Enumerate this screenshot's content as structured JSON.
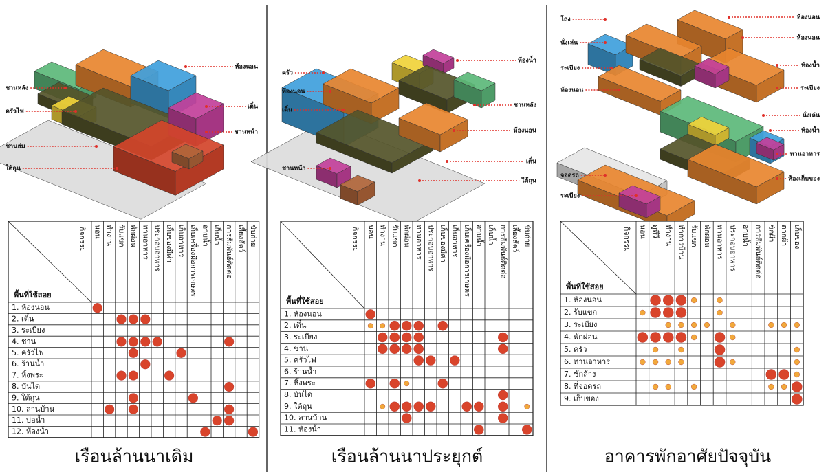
{
  "panels": [
    {
      "title": "เรือนล้านนาเดิม",
      "diagram": {
        "labels_left": [
          "ชานหลัง",
          "ครัวไฟ",
          "ชานฮ่ม",
          "ใต้ถุน"
        ],
        "labels_right": [
          "ห้องนอน",
          "เติ๋น",
          "ชานหน้า"
        ]
      },
      "table": {
        "corner_top": "กิจกรรม",
        "corner_bottom": "พื้นที่ใช้สอย",
        "columns": [
          "นอน",
          "ทำงาน",
          "รับแขก",
          "พักผ่อน",
          "ทานอาหาร",
          "ประกอบอาหาร",
          "เก็บของมีค่า",
          "เก็บอาหาร",
          "เก็บเครื่องมือการเกษตร",
          "อาบน้ำ",
          "เก็บน้ำ",
          "การสัมพันธ์ติดต่อ",
          "เลี้ยงสัตว์",
          "ขับถ่าย"
        ],
        "rows": [
          {
            "label": "1. ห้องนอน",
            "cells": [
              2,
              null,
              null,
              null,
              null,
              null,
              null,
              null,
              null,
              null,
              null,
              null,
              null,
              null
            ]
          },
          {
            "label": "2. เติ๋น",
            "cells": [
              null,
              null,
              2,
              2,
              2,
              null,
              null,
              null,
              null,
              null,
              null,
              null,
              null,
              null
            ]
          },
          {
            "label": "3. ระเบียง",
            "cells": [
              null,
              null,
              null,
              null,
              null,
              null,
              null,
              null,
              null,
              null,
              null,
              null,
              null,
              null
            ]
          },
          {
            "label": "4. ชาน",
            "cells": [
              null,
              null,
              2,
              2,
              2,
              2,
              null,
              null,
              null,
              null,
              null,
              2,
              null,
              null
            ]
          },
          {
            "label": "5. ครัวไฟ",
            "cells": [
              null,
              null,
              null,
              2,
              null,
              null,
              null,
              2,
              null,
              null,
              null,
              null,
              null,
              null
            ]
          },
          {
            "label": "6. ร้านน้ำ",
            "cells": [
              null,
              null,
              null,
              null,
              2,
              null,
              null,
              null,
              null,
              null,
              null,
              null,
              null,
              null
            ]
          },
          {
            "label": "7. หิ้งพระ",
            "cells": [
              null,
              null,
              2,
              2,
              null,
              null,
              2,
              null,
              null,
              null,
              null,
              null,
              null,
              null
            ]
          },
          {
            "label": "8. บันได",
            "cells": [
              null,
              null,
              null,
              null,
              null,
              null,
              null,
              null,
              null,
              null,
              null,
              2,
              null,
              null
            ]
          },
          {
            "label": "9. ใต้ถุน",
            "cells": [
              null,
              null,
              null,
              2,
              null,
              null,
              null,
              null,
              2,
              null,
              null,
              null,
              null,
              null
            ]
          },
          {
            "label": "10. ลานบ้าน",
            "cells": [
              null,
              2,
              null,
              2,
              null,
              null,
              null,
              null,
              null,
              null,
              null,
              2,
              null,
              null
            ]
          },
          {
            "label": "11. บ่อน้ำ",
            "cells": [
              null,
              null,
              null,
              null,
              null,
              null,
              null,
              null,
              null,
              null,
              2,
              2,
              null,
              null
            ]
          },
          {
            "label": "12. ห้องน้ำ",
            "cells": [
              null,
              null,
              null,
              null,
              null,
              null,
              null,
              null,
              null,
              2,
              null,
              null,
              null,
              2
            ]
          }
        ]
      }
    },
    {
      "title": "เรือนล้านนาประยุกต์",
      "diagram": {
        "labels_left": [
          "ครัว",
          "ห้องนอน",
          "เติ๋น",
          "ชานหน้า"
        ],
        "labels_right": [
          "ห้องน้ำ",
          "ชานหลัง",
          "ห้องนอน",
          "เติ๋น",
          "ใต้ถุน"
        ]
      },
      "table": {
        "corner_top": "กิจกรรม",
        "corner_bottom": "พื้นที่ใช้สอย",
        "columns": [
          "นอน",
          "ทำงาน",
          "รับแขก",
          "พักผ่อน",
          "ทานอาหาร",
          "ประกอบอาหาร",
          "เก็บของมีค่า",
          "เก็บอาหาร",
          "เก็บเครื่องมือการเกษตร",
          "อาบน้ำ",
          "เก็บน้ำ",
          "การสัมพันธ์ติดต่อ",
          "เลี้ยงสัตว์",
          "ขับถ่าย"
        ],
        "rows": [
          {
            "label": "1. ห้องนอน",
            "cells": [
              2,
              null,
              null,
              null,
              null,
              null,
              null,
              null,
              null,
              null,
              null,
              null,
              null,
              null
            ]
          },
          {
            "label": "2. เติ๋น",
            "cells": [
              1,
              1,
              2,
              2,
              2,
              null,
              2,
              null,
              null,
              null,
              null,
              null,
              null,
              null
            ]
          },
          {
            "label": "3. ระเบียง",
            "cells": [
              null,
              2,
              2,
              2,
              2,
              null,
              null,
              null,
              null,
              null,
              null,
              2,
              null,
              null
            ]
          },
          {
            "label": "4. ชาน",
            "cells": [
              null,
              2,
              2,
              2,
              2,
              null,
              null,
              null,
              null,
              null,
              null,
              2,
              null,
              null
            ]
          },
          {
            "label": "5. ครัวไฟ",
            "cells": [
              null,
              null,
              null,
              null,
              2,
              2,
              null,
              2,
              null,
              null,
              null,
              null,
              null,
              null
            ]
          },
          {
            "label": "6. ร้านน้ำ",
            "cells": [
              null,
              null,
              null,
              null,
              null,
              null,
              null,
              null,
              null,
              null,
              null,
              null,
              null,
              null
            ]
          },
          {
            "label": "7. หิ้งพระ",
            "cells": [
              2,
              null,
              2,
              1,
              null,
              null,
              2,
              null,
              null,
              null,
              null,
              null,
              null,
              null
            ]
          },
          {
            "label": "8. บันได",
            "cells": [
              null,
              null,
              null,
              null,
              null,
              null,
              null,
              null,
              null,
              null,
              null,
              2,
              null,
              null
            ]
          },
          {
            "label": "9. ใต้ถุน",
            "cells": [
              null,
              1,
              2,
              2,
              2,
              2,
              null,
              null,
              2,
              2,
              null,
              2,
              null,
              1
            ]
          },
          {
            "label": "10. ลานบ้าน",
            "cells": [
              null,
              null,
              null,
              2,
              null,
              null,
              null,
              null,
              null,
              null,
              null,
              2,
              null,
              null
            ]
          },
          {
            "label": "11. ห้องน้ำ",
            "cells": [
              null,
              null,
              null,
              null,
              null,
              null,
              null,
              null,
              null,
              2,
              null,
              null,
              null,
              2
            ]
          }
        ]
      }
    },
    {
      "title": "อาคารพักอาศัยปัจจุบัน",
      "diagram": {
        "labels_left": [
          "โถง",
          "นั่งเล่น",
          "ระเบียง",
          "ห้องนอน",
          "จอดรถ",
          "ระเบียง"
        ],
        "labels_right": [
          "ห้องนอน",
          "ห้องนอน",
          "ห้องน้ำ",
          "ระเบียง",
          "นั่งเล่น",
          "ห้องน้ำ",
          "ทานอาหาร",
          "ห้องเก็บของ"
        ]
      },
      "table": {
        "corner_top": "กิจกรรม",
        "corner_bottom": "พื้นที่ใช้สอย",
        "columns": [
          "นอน",
          "ดูทีวี",
          "ทำงาน",
          "ทำการบ้าน",
          "รับแขก",
          "พักผ่อน",
          "ทานอาหาร",
          "ประกอบอาหาร",
          "อาบน้ำ",
          "การสัมพันธ์ติดต่อ",
          "ซักผ้า",
          "ตากผ้า",
          "เก็บของ"
        ],
        "rows": [
          {
            "label": "1. ห้องนอน",
            "cells": [
              null,
              2,
              2,
              2,
              1,
              null,
              1,
              null,
              null,
              null,
              null,
              null,
              null
            ]
          },
          {
            "label": "2. รับแขก",
            "cells": [
              1,
              2,
              2,
              2,
              null,
              null,
              1,
              null,
              null,
              null,
              null,
              null,
              null
            ]
          },
          {
            "label": "3. ระเบียง",
            "cells": [
              null,
              null,
              1,
              1,
              1,
              1,
              null,
              1,
              null,
              null,
              1,
              1,
              1
            ]
          },
          {
            "label": "4. พักผ่อน",
            "cells": [
              2,
              2,
              2,
              2,
              1,
              null,
              2,
              1,
              null,
              null,
              null,
              null,
              null
            ]
          },
          {
            "label": "5. ครัว",
            "cells": [
              null,
              1,
              null,
              1,
              null,
              null,
              2,
              null,
              null,
              null,
              null,
              null,
              1
            ]
          },
          {
            "label": "6. ทานอาหาร",
            "cells": [
              1,
              1,
              1,
              1,
              null,
              null,
              2,
              1,
              null,
              null,
              null,
              null,
              1
            ]
          },
          {
            "label": "7. ซักล้าง",
            "cells": [
              null,
              null,
              null,
              null,
              null,
              null,
              null,
              null,
              null,
              null,
              2,
              2,
              1
            ]
          },
          {
            "label": "8. ที่จอดรถ",
            "cells": [
              null,
              1,
              1,
              null,
              1,
              null,
              null,
              null,
              null,
              null,
              1,
              1,
              2
            ]
          },
          {
            "label": "9. เก็บของ",
            "cells": [
              null,
              null,
              null,
              null,
              null,
              null,
              null,
              null,
              null,
              null,
              null,
              null,
              2
            ]
          }
        ]
      }
    }
  ]
}
